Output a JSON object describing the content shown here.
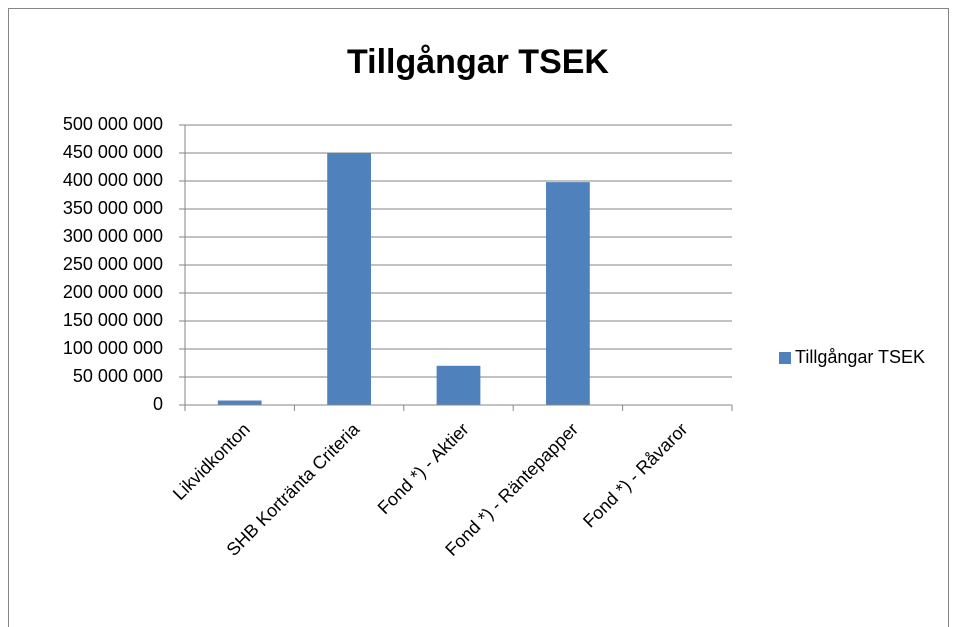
{
  "chart_data": {
    "type": "bar",
    "title": "Tillgångar TSEK",
    "categories": [
      "Likvidkonton",
      "SHB Kortränta Criteria",
      "Fond *) - Aktier",
      "Fond *) - Räntepapper",
      "Fond *) - Råvaror"
    ],
    "series": [
      {
        "name": "Tillgångar TSEK",
        "color": "#4f81bd",
        "values": [
          8000000,
          450000000,
          70000000,
          398000000,
          0
        ]
      }
    ],
    "ylim": [
      0,
      500000000
    ],
    "yticks": [
      0,
      {
        "value": 50000000,
        "label": "50 000 000"
      },
      {
        "value": 100000000,
        "label": "100 000 000"
      },
      {
        "value": 150000000,
        "label": "150 000 000"
      },
      {
        "value": 200000000,
        "label": "200 000 000"
      },
      {
        "value": 250000000,
        "label": "250 000 000"
      },
      {
        "value": 300000000,
        "label": "300 000 000"
      },
      {
        "value": 350000000,
        "label": "350 000 000"
      },
      {
        "value": 400000000,
        "label": "400 000 000"
      },
      {
        "value": 450000000,
        "label": "450 000 000"
      },
      {
        "value": 500000000,
        "label": "500 000 000"
      }
    ],
    "grid": true,
    "legend": "right"
  }
}
